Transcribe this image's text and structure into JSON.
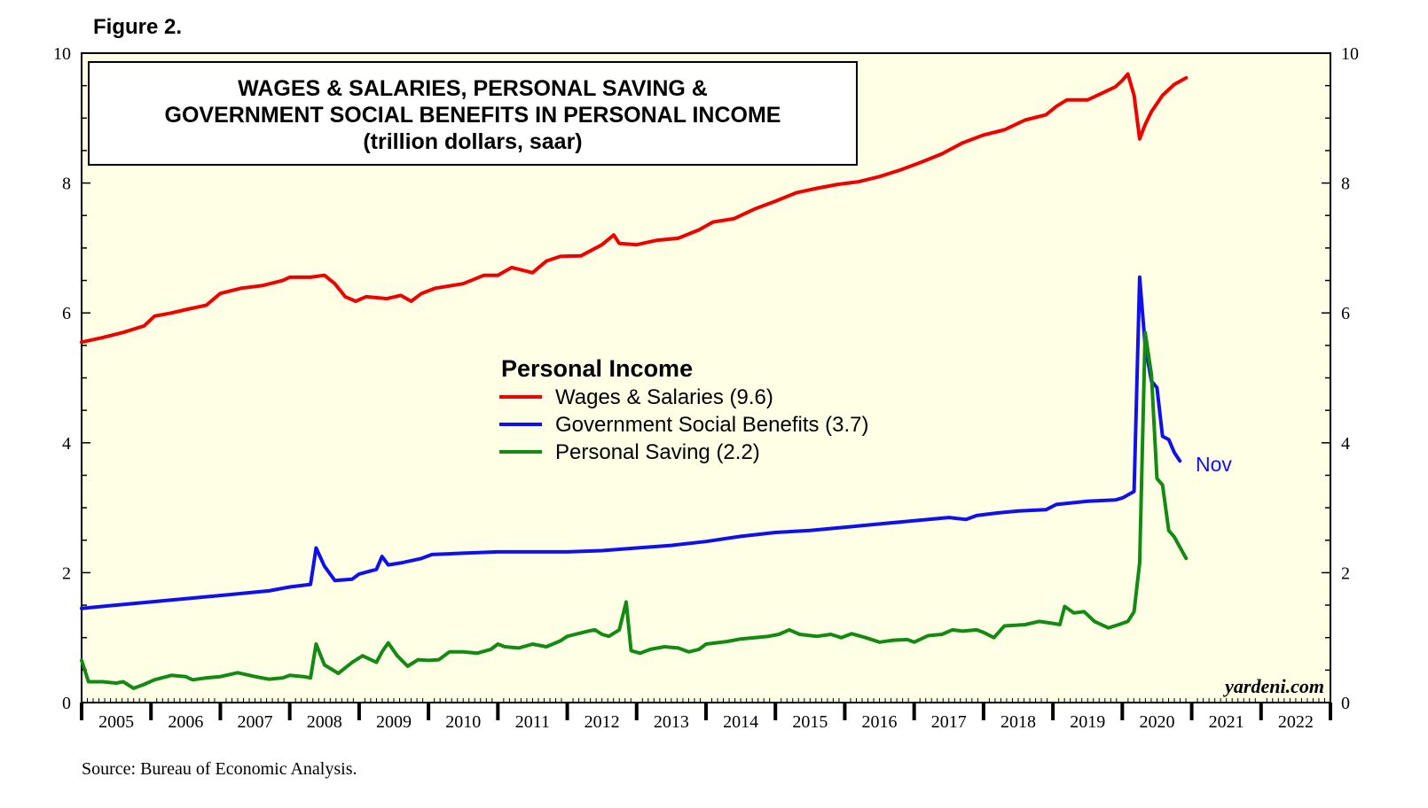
{
  "figure_label": "Figure 2.",
  "source": "Source: Bureau of Economic Analysis.",
  "watermark": "yardeni.com",
  "end_label": "Nov",
  "colors": {
    "plot_bg": "#FFFFE6",
    "red": "#EE0000",
    "blue": "#1010EE",
    "green": "#138A13"
  },
  "chart_data": {
    "type": "line",
    "title_lines": [
      "WAGES & SALARIES, PERSONAL SAVING &",
      "GOVERNMENT SOCIAL BENEFITS IN PERSONAL INCOME",
      "(trillion dollars, saar)"
    ],
    "legend_title": "Personal Income",
    "x_tick_labels": [
      "2005",
      "2006",
      "2007",
      "2008",
      "2009",
      "2010",
      "2011",
      "2012",
      "2013",
      "2014",
      "2015",
      "2016",
      "2017",
      "2018",
      "2019",
      "2020",
      "2021",
      "2022"
    ],
    "xlim": [
      2005,
      2023
    ],
    "ylim": [
      0,
      10
    ],
    "y_ticks": [
      0,
      2,
      4,
      6,
      8,
      10
    ],
    "series": [
      {
        "name": "Wages & Salaries (9.6)",
        "color": "red",
        "points": [
          [
            2005.0,
            5.55
          ],
          [
            2005.3,
            5.62
          ],
          [
            2005.6,
            5.7
          ],
          [
            2005.9,
            5.8
          ],
          [
            2006.05,
            5.95
          ],
          [
            2006.3,
            6.0
          ],
          [
            2006.5,
            6.05
          ],
          [
            2006.8,
            6.12
          ],
          [
            2007.0,
            6.3
          ],
          [
            2007.3,
            6.38
          ],
          [
            2007.6,
            6.42
          ],
          [
            2007.9,
            6.5
          ],
          [
            2008.0,
            6.55
          ],
          [
            2008.3,
            6.55
          ],
          [
            2008.5,
            6.58
          ],
          [
            2008.65,
            6.45
          ],
          [
            2008.8,
            6.25
          ],
          [
            2008.95,
            6.18
          ],
          [
            2009.1,
            6.25
          ],
          [
            2009.4,
            6.22
          ],
          [
            2009.6,
            6.27
          ],
          [
            2009.75,
            6.18
          ],
          [
            2009.9,
            6.3
          ],
          [
            2010.1,
            6.38
          ],
          [
            2010.5,
            6.45
          ],
          [
            2010.8,
            6.58
          ],
          [
            2011.0,
            6.58
          ],
          [
            2011.2,
            6.7
          ],
          [
            2011.5,
            6.62
          ],
          [
            2011.7,
            6.8
          ],
          [
            2011.9,
            6.87
          ],
          [
            2012.2,
            6.88
          ],
          [
            2012.5,
            7.05
          ],
          [
            2012.67,
            7.2
          ],
          [
            2012.75,
            7.07
          ],
          [
            2013.0,
            7.05
          ],
          [
            2013.3,
            7.12
          ],
          [
            2013.6,
            7.15
          ],
          [
            2013.9,
            7.28
          ],
          [
            2014.1,
            7.4
          ],
          [
            2014.4,
            7.45
          ],
          [
            2014.7,
            7.6
          ],
          [
            2015.0,
            7.72
          ],
          [
            2015.3,
            7.85
          ],
          [
            2015.6,
            7.92
          ],
          [
            2015.9,
            7.98
          ],
          [
            2016.2,
            8.02
          ],
          [
            2016.5,
            8.1
          ],
          [
            2016.8,
            8.2
          ],
          [
            2017.1,
            8.32
          ],
          [
            2017.4,
            8.45
          ],
          [
            2017.7,
            8.62
          ],
          [
            2018.0,
            8.74
          ],
          [
            2018.3,
            8.82
          ],
          [
            2018.6,
            8.97
          ],
          [
            2018.9,
            9.05
          ],
          [
            2019.05,
            9.18
          ],
          [
            2019.2,
            9.28
          ],
          [
            2019.5,
            9.28
          ],
          [
            2019.7,
            9.38
          ],
          [
            2019.9,
            9.48
          ],
          [
            2020.0,
            9.58
          ],
          [
            2020.08,
            9.68
          ],
          [
            2020.17,
            9.35
          ],
          [
            2020.25,
            8.68
          ],
          [
            2020.33,
            8.9
          ],
          [
            2020.42,
            9.1
          ],
          [
            2020.58,
            9.35
          ],
          [
            2020.75,
            9.52
          ],
          [
            2020.92,
            9.62
          ]
        ]
      },
      {
        "name": "Government Social Benefits (3.7)",
        "color": "blue",
        "points": [
          [
            2005.0,
            1.45
          ],
          [
            2005.5,
            1.5
          ],
          [
            2006.0,
            1.55
          ],
          [
            2006.5,
            1.6
          ],
          [
            2007.0,
            1.65
          ],
          [
            2007.3,
            1.68
          ],
          [
            2007.7,
            1.72
          ],
          [
            2008.0,
            1.78
          ],
          [
            2008.3,
            1.82
          ],
          [
            2008.38,
            2.38
          ],
          [
            2008.5,
            2.1
          ],
          [
            2008.65,
            1.88
          ],
          [
            2008.9,
            1.9
          ],
          [
            2009.0,
            1.98
          ],
          [
            2009.25,
            2.05
          ],
          [
            2009.33,
            2.25
          ],
          [
            2009.42,
            2.12
          ],
          [
            2009.6,
            2.15
          ],
          [
            2009.9,
            2.22
          ],
          [
            2010.05,
            2.28
          ],
          [
            2010.5,
            2.3
          ],
          [
            2011.0,
            2.32
          ],
          [
            2011.5,
            2.32
          ],
          [
            2012.0,
            2.32
          ],
          [
            2012.5,
            2.34
          ],
          [
            2013.0,
            2.38
          ],
          [
            2013.5,
            2.42
          ],
          [
            2014.0,
            2.48
          ],
          [
            2014.5,
            2.56
          ],
          [
            2015.0,
            2.62
          ],
          [
            2015.5,
            2.65
          ],
          [
            2016.0,
            2.7
          ],
          [
            2016.5,
            2.75
          ],
          [
            2017.0,
            2.8
          ],
          [
            2017.5,
            2.85
          ],
          [
            2017.75,
            2.82
          ],
          [
            2017.9,
            2.88
          ],
          [
            2018.2,
            2.92
          ],
          [
            2018.5,
            2.95
          ],
          [
            2018.9,
            2.97
          ],
          [
            2019.05,
            3.05
          ],
          [
            2019.5,
            3.1
          ],
          [
            2019.9,
            3.12
          ],
          [
            2020.0,
            3.15
          ],
          [
            2020.17,
            3.25
          ],
          [
            2020.25,
            6.55
          ],
          [
            2020.33,
            5.5
          ],
          [
            2020.42,
            4.95
          ],
          [
            2020.5,
            4.85
          ],
          [
            2020.58,
            4.1
          ],
          [
            2020.67,
            4.05
          ],
          [
            2020.75,
            3.85
          ],
          [
            2020.83,
            3.72
          ]
        ]
      },
      {
        "name": "Personal Saving (2.2)",
        "color": "green",
        "points": [
          [
            2005.0,
            0.65
          ],
          [
            2005.1,
            0.32
          ],
          [
            2005.3,
            0.32
          ],
          [
            2005.5,
            0.3
          ],
          [
            2005.6,
            0.32
          ],
          [
            2005.75,
            0.22
          ],
          [
            2005.9,
            0.28
          ],
          [
            2006.05,
            0.35
          ],
          [
            2006.3,
            0.42
          ],
          [
            2006.5,
            0.4
          ],
          [
            2006.6,
            0.35
          ],
          [
            2006.8,
            0.38
          ],
          [
            2007.0,
            0.4
          ],
          [
            2007.25,
            0.46
          ],
          [
            2007.5,
            0.4
          ],
          [
            2007.7,
            0.36
          ],
          [
            2007.9,
            0.38
          ],
          [
            2008.0,
            0.42
          ],
          [
            2008.2,
            0.4
          ],
          [
            2008.3,
            0.38
          ],
          [
            2008.38,
            0.9
          ],
          [
            2008.5,
            0.58
          ],
          [
            2008.7,
            0.45
          ],
          [
            2008.9,
            0.62
          ],
          [
            2009.05,
            0.72
          ],
          [
            2009.25,
            0.62
          ],
          [
            2009.33,
            0.78
          ],
          [
            2009.42,
            0.92
          ],
          [
            2009.55,
            0.72
          ],
          [
            2009.7,
            0.56
          ],
          [
            2009.85,
            0.66
          ],
          [
            2010.0,
            0.65
          ],
          [
            2010.15,
            0.66
          ],
          [
            2010.3,
            0.78
          ],
          [
            2010.5,
            0.78
          ],
          [
            2010.7,
            0.76
          ],
          [
            2010.9,
            0.82
          ],
          [
            2011.0,
            0.9
          ],
          [
            2011.1,
            0.86
          ],
          [
            2011.3,
            0.84
          ],
          [
            2011.5,
            0.9
          ],
          [
            2011.7,
            0.86
          ],
          [
            2011.9,
            0.95
          ],
          [
            2012.0,
            1.02
          ],
          [
            2012.3,
            1.1
          ],
          [
            2012.4,
            1.12
          ],
          [
            2012.5,
            1.05
          ],
          [
            2012.6,
            1.02
          ],
          [
            2012.75,
            1.12
          ],
          [
            2012.85,
            1.55
          ],
          [
            2012.92,
            0.8
          ],
          [
            2013.05,
            0.76
          ],
          [
            2013.2,
            0.82
          ],
          [
            2013.4,
            0.86
          ],
          [
            2013.6,
            0.84
          ],
          [
            2013.75,
            0.78
          ],
          [
            2013.9,
            0.82
          ],
          [
            2014.0,
            0.9
          ],
          [
            2014.3,
            0.94
          ],
          [
            2014.5,
            0.98
          ],
          [
            2014.7,
            1.0
          ],
          [
            2014.9,
            1.02
          ],
          [
            2015.05,
            1.05
          ],
          [
            2015.2,
            1.12
          ],
          [
            2015.35,
            1.05
          ],
          [
            2015.6,
            1.02
          ],
          [
            2015.8,
            1.05
          ],
          [
            2015.95,
            1.0
          ],
          [
            2016.1,
            1.06
          ],
          [
            2016.3,
            1.0
          ],
          [
            2016.5,
            0.93
          ],
          [
            2016.7,
            0.96
          ],
          [
            2016.9,
            0.97
          ],
          [
            2017.0,
            0.93
          ],
          [
            2017.2,
            1.03
          ],
          [
            2017.4,
            1.05
          ],
          [
            2017.55,
            1.12
          ],
          [
            2017.7,
            1.1
          ],
          [
            2017.9,
            1.12
          ],
          [
            2018.0,
            1.08
          ],
          [
            2018.15,
            1.0
          ],
          [
            2018.3,
            1.18
          ],
          [
            2018.6,
            1.2
          ],
          [
            2018.8,
            1.25
          ],
          [
            2019.0,
            1.22
          ],
          [
            2019.1,
            1.2
          ],
          [
            2019.17,
            1.48
          ],
          [
            2019.3,
            1.38
          ],
          [
            2019.45,
            1.4
          ],
          [
            2019.6,
            1.25
          ],
          [
            2019.8,
            1.15
          ],
          [
            2019.95,
            1.2
          ],
          [
            2020.08,
            1.25
          ],
          [
            2020.17,
            1.4
          ],
          [
            2020.25,
            2.15
          ],
          [
            2020.33,
            5.7
          ],
          [
            2020.42,
            5.05
          ],
          [
            2020.5,
            3.45
          ],
          [
            2020.58,
            3.35
          ],
          [
            2020.67,
            2.65
          ],
          [
            2020.75,
            2.55
          ],
          [
            2020.92,
            2.22
          ]
        ]
      }
    ]
  }
}
